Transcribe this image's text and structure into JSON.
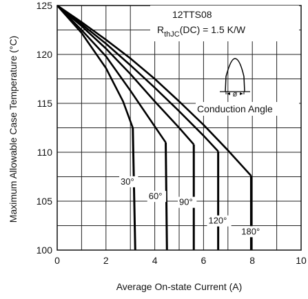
{
  "chart_data": {
    "type": "line",
    "title": "",
    "xlabel": "Average On-state Current (A)",
    "ylabel": "Maximum Allowable Case Temperature (°C)",
    "xlim": [
      0,
      10
    ],
    "ylim": [
      100,
      125
    ],
    "xticks": [
      "0",
      "2",
      "4",
      "6",
      "8",
      "10"
    ],
    "yticks": [
      "100",
      "105",
      "110",
      "115",
      "120",
      "125"
    ],
    "x_tick_values": [
      0,
      2,
      4,
      6,
      8,
      10
    ],
    "y_tick_values": [
      100,
      105,
      110,
      115,
      120,
      125
    ],
    "x_grid_values": [
      0,
      1,
      2,
      3,
      4,
      5,
      6,
      7,
      8,
      9,
      10
    ],
    "y_grid_values": [
      100,
      102.5,
      105,
      107.5,
      110,
      112.5,
      115,
      117.5,
      120,
      122.5,
      125
    ],
    "grid": true,
    "series": [
      {
        "name": "30°",
        "points": [
          [
            0,
            125
          ],
          [
            1,
            122.2
          ],
          [
            2,
            118.6
          ],
          [
            2.7,
            115.2
          ],
          [
            3.1,
            112.5
          ]
        ],
        "cutoff_x": 3.2
      },
      {
        "name": "60°",
        "points": [
          [
            0,
            125
          ],
          [
            1,
            122.5
          ],
          [
            2,
            119.8
          ],
          [
            3,
            116.3
          ],
          [
            3.9,
            113.0
          ],
          [
            4.45,
            111.0
          ]
        ],
        "cutoff_x": 4.5
      },
      {
        "name": "90°",
        "points": [
          [
            0,
            125
          ],
          [
            1,
            122.9
          ],
          [
            2,
            120.6
          ],
          [
            3,
            118.0
          ],
          [
            4,
            115.2
          ],
          [
            5,
            112.5
          ],
          [
            5.6,
            110.8
          ]
        ],
        "cutoff_x": 5.6
      },
      {
        "name": "120°",
        "points": [
          [
            0,
            125
          ],
          [
            1,
            123.1
          ],
          [
            2,
            121.1
          ],
          [
            3,
            118.9
          ],
          [
            4,
            116.6
          ],
          [
            5,
            114.2
          ],
          [
            6,
            111.7
          ],
          [
            6.6,
            110.1
          ]
        ],
        "cutoff_x": 6.6
      },
      {
        "name": "180°",
        "points": [
          [
            0,
            125
          ],
          [
            1,
            123.3
          ],
          [
            2,
            121.5
          ],
          [
            3,
            119.6
          ],
          [
            4,
            117.5
          ],
          [
            5,
            115.2
          ],
          [
            6,
            112.8
          ],
          [
            7,
            110.2
          ],
          [
            7.95,
            107.6
          ]
        ],
        "cutoff_x": 7.95
      }
    ],
    "annotations": {
      "device": "12TTS08",
      "rth_prefix": "R",
      "rth_sub": "thJC",
      "rth_value": "(DC) = 1.5 K/W",
      "conduction_angle": "Conduction Angle",
      "phi_symbol": "ø"
    }
  }
}
